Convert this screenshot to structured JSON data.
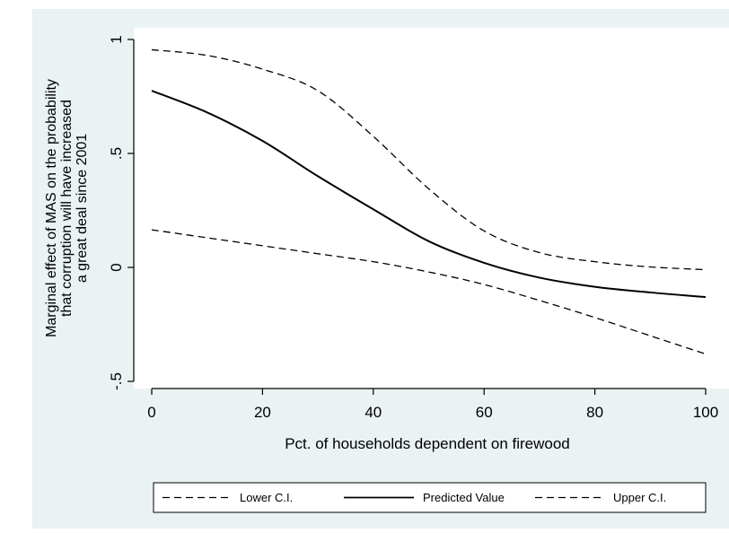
{
  "chart_data": {
    "type": "line",
    "title": "",
    "xlabel": "Pct. of households dependent on firewood",
    "ylabel_lines": [
      "Marginal effect of MAS on the probability",
      "that corruption will have increased",
      "a great deal since 2001"
    ],
    "xlim": [
      0,
      100
    ],
    "ylim": [
      -0.5,
      1
    ],
    "x_ticks": [
      0,
      20,
      40,
      60,
      80,
      100
    ],
    "x_tick_labels": [
      "0",
      "20",
      "40",
      "60",
      "80",
      "100"
    ],
    "y_ticks": [
      -0.5,
      0,
      0.5,
      1
    ],
    "y_tick_labels": [
      "-.5",
      "0",
      ".5",
      "1"
    ],
    "grid": false,
    "legend_position": "bottom",
    "background_color": "#eaf2f3",
    "plot_background_color": "#ffffff",
    "series": [
      {
        "name": "Lower C.I.",
        "style": "dashed",
        "x": [
          0,
          10,
          20,
          30,
          40,
          50,
          60,
          70,
          80,
          90,
          100
        ],
        "y": [
          0.165,
          0.13,
          0.095,
          0.06,
          0.025,
          -0.02,
          -0.075,
          -0.145,
          -0.22,
          -0.3,
          -0.38
        ]
      },
      {
        "name": "Predicted Value",
        "style": "solid",
        "x": [
          0,
          10,
          20,
          30,
          40,
          50,
          60,
          70,
          80,
          90,
          100
        ],
        "y": [
          0.775,
          0.68,
          0.555,
          0.4,
          0.255,
          0.115,
          0.02,
          -0.045,
          -0.085,
          -0.11,
          -0.13
        ]
      },
      {
        "name": "Upper C.I.",
        "style": "dashed",
        "x": [
          0,
          10,
          20,
          30,
          40,
          50,
          60,
          70,
          80,
          90,
          100
        ],
        "y": [
          0.955,
          0.93,
          0.87,
          0.775,
          0.575,
          0.345,
          0.16,
          0.065,
          0.025,
          0.002,
          -0.01
        ]
      }
    ]
  }
}
